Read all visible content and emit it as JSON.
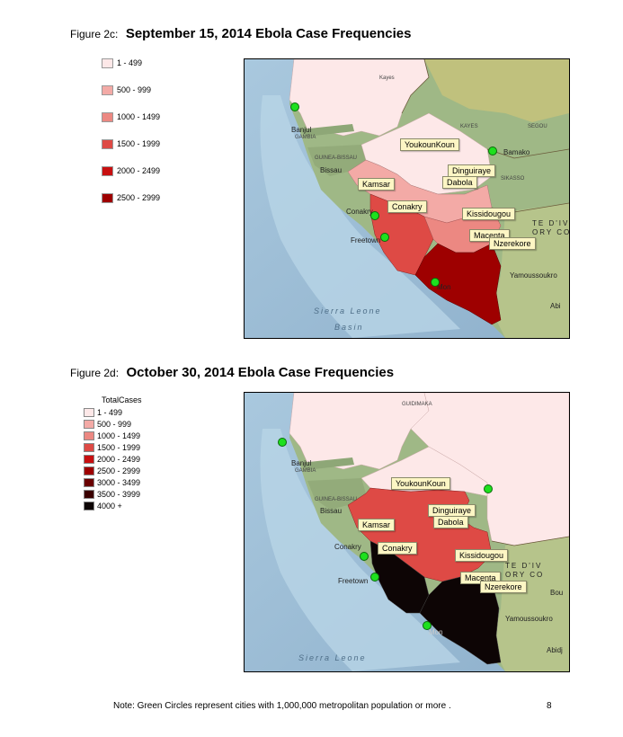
{
  "figure_c": {
    "label": "Figure 2c:",
    "title": "September 15, 2014 Ebola Case Frequencies",
    "legend": [
      {
        "range": "1 - 499",
        "color": "#fde8e8"
      },
      {
        "range": "500 - 999",
        "color": "#f3aaa6"
      },
      {
        "range": "1000 - 1499",
        "color": "#ec8882"
      },
      {
        "range": "1500 - 1999",
        "color": "#de4a45"
      },
      {
        "range": "2000 - 2499",
        "color": "#c80f10"
      },
      {
        "range": "2500 - 2999",
        "color": "#9e0000"
      }
    ],
    "callouts": [
      "YoukounKoun",
      "Dinguiraye",
      "Dabola",
      "Kamsar",
      "Conakry",
      "Kissidougou",
      "Macenta",
      "Nzerekore"
    ],
    "map_labels": {
      "banjul": "Banjul",
      "gambia": "GAMBIA",
      "guinea_bissau": "GUINEA-BISSAU",
      "bissau": "Bissau",
      "conakry": "Conakry",
      "freetown": "Freetown",
      "bamako": "Bamako",
      "kayes": "KAYES",
      "segou": "SEGOU",
      "sikasso": "SIKASSO",
      "cote_divoire": "TE D'IV",
      "cote_divoire_2": "ORY CO",
      "yamoussoukro": "Yamoussoukro",
      "abidjan": "Abi",
      "sea1": "Sierra Leone",
      "sea2": "Basin",
      "monrovia": "Mon",
      "koulikoro": "Kayes"
    }
  },
  "figure_d": {
    "label": "Figure 2d:",
    "title": "October 30, 2014 Ebola Case Frequencies",
    "legend_header": "TotalCases",
    "legend": [
      {
        "range": "1 - 499",
        "color": "#fde8e8"
      },
      {
        "range": "500 - 999",
        "color": "#f3aaa6"
      },
      {
        "range": "1000 - 1499",
        "color": "#ec8882"
      },
      {
        "range": "1500 - 1999",
        "color": "#de4a45"
      },
      {
        "range": "2000 - 2499",
        "color": "#c80f10"
      },
      {
        "range": "2500 - 2999",
        "color": "#9e0000"
      },
      {
        "range": "3000 - 3499",
        "color": "#6a0000"
      },
      {
        "range": "3500 - 3999",
        "color": "#3a0000"
      },
      {
        "range": "4000 +",
        "color": "#0d0505"
      }
    ],
    "callouts": [
      "YoukounKoun",
      "Dinguiraye",
      "Dabola",
      "Kamsar",
      "Conakry",
      "Kissidougou",
      "Macenta",
      "Nzerekore"
    ],
    "map_labels": {
      "banjul": "Banjul",
      "gambia": "GAMBIA",
      "guinea_bissau": "GUINEA-BISSAU",
      "bissau": "Bissau",
      "conakry": "Conakry",
      "freetown": "Freetown",
      "cote_divoire": "TE D'IV",
      "cote_divoire_2": "ORY CO",
      "yamoussoukro": "Yamoussoukro",
      "abidjan": "Abidj",
      "sea1": "Sierra Leone",
      "monrovia": "Mon",
      "guidimaka": "GUIDIMAKA",
      "bou": "Bou"
    }
  },
  "note": "Note: Green Circles represent cities with 1,000,000 metropolitan population or more .",
  "page_number": "8"
}
